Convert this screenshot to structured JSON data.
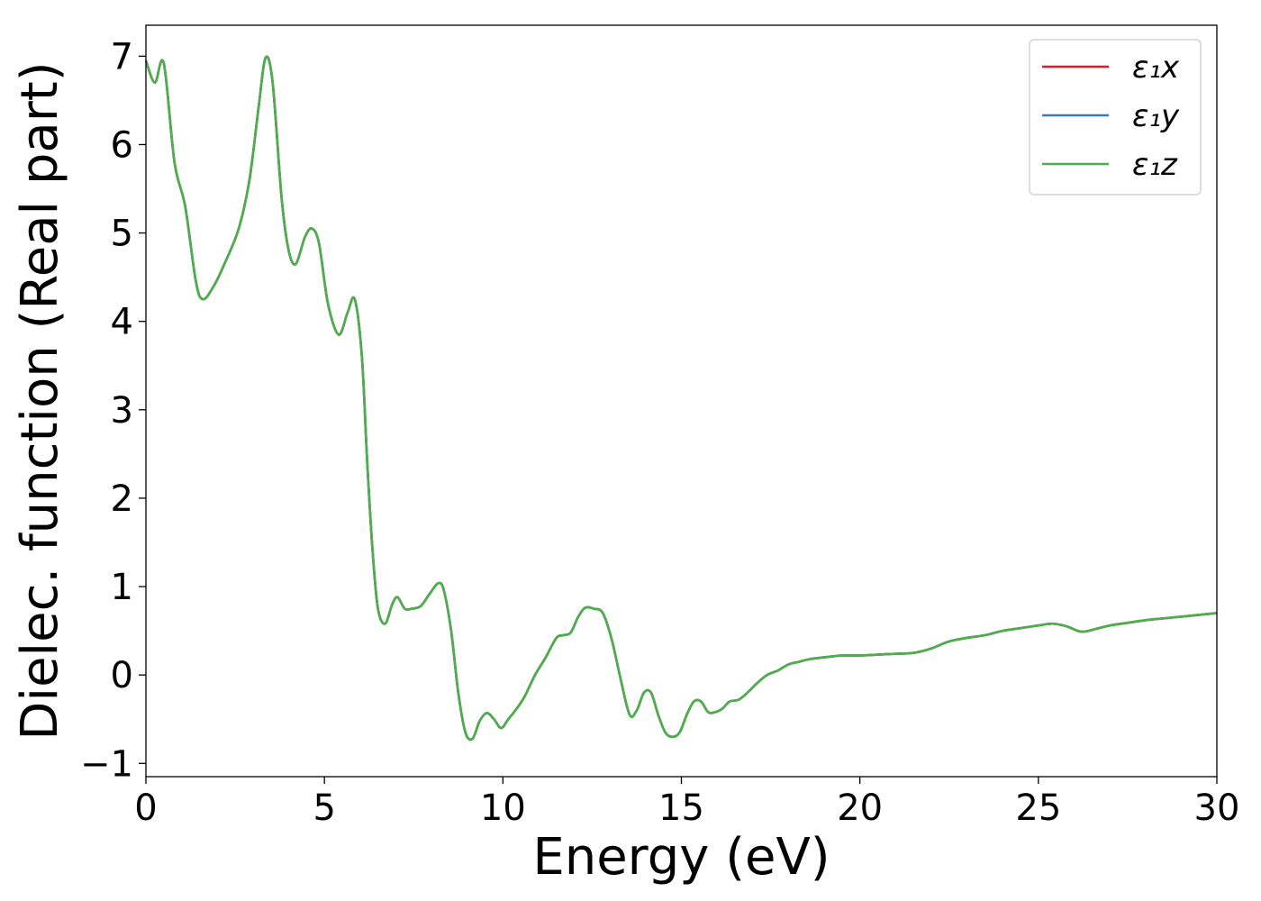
{
  "chart_data": {
    "type": "line",
    "xlabel": "Energy (eV)",
    "ylabel": "Dielec. function (Real part)",
    "xlim": [
      0,
      30
    ],
    "ylim": [
      -1.15,
      7.35
    ],
    "xticks": [
      0,
      5,
      10,
      15,
      20,
      25,
      30
    ],
    "xtick_labels": [
      "0",
      "5",
      "10",
      "15",
      "20",
      "25",
      "30"
    ],
    "yticks": [
      -1,
      0,
      1,
      2,
      3,
      4,
      5,
      6,
      7
    ],
    "ytick_labels": [
      "−1",
      "0",
      "1",
      "2",
      "3",
      "4",
      "5",
      "6",
      "7"
    ],
    "grid": false,
    "legend_position": "top-right",
    "series": [
      {
        "name": "ε₁x",
        "color": "#e41a1c",
        "x": [
          0,
          0.25,
          0.5,
          0.8,
          1.1,
          1.4,
          1.6,
          1.9,
          2.2,
          2.6,
          2.9,
          3.15,
          3.35,
          3.55,
          3.8,
          4.0,
          4.2,
          4.45,
          4.65,
          4.85,
          5.1,
          5.4,
          5.65,
          5.85,
          6.05,
          6.2,
          6.35,
          6.5,
          6.7,
          6.9,
          7.05,
          7.25,
          7.45,
          7.7,
          7.95,
          8.2,
          8.35,
          8.55,
          8.75,
          8.95,
          9.15,
          9.35,
          9.55,
          9.75,
          9.95,
          10.15,
          10.35,
          10.6,
          10.9,
          11.2,
          11.5,
          11.7,
          11.9,
          12.1,
          12.3,
          12.55,
          12.8,
          13.05,
          13.3,
          13.55,
          13.75,
          13.95,
          14.15,
          14.35,
          14.55,
          14.75,
          14.95,
          15.15,
          15.35,
          15.55,
          15.75,
          15.95,
          16.15,
          16.35,
          16.6,
          16.85,
          17.1,
          17.4,
          17.7,
          18.0,
          18.3,
          18.6,
          19.0,
          19.5,
          20.0,
          20.5,
          21.0,
          21.5,
          22.0,
          22.5,
          23.0,
          23.5,
          24.0,
          24.5,
          25.0,
          25.4,
          25.8,
          26.2,
          26.6,
          27.0,
          27.5,
          28.0,
          28.5,
          29.0,
          29.5,
          30.0
        ],
        "y": [
          6.95,
          6.7,
          6.92,
          5.8,
          5.3,
          4.45,
          4.25,
          4.4,
          4.65,
          5.05,
          5.6,
          6.4,
          6.98,
          6.7,
          5.4,
          4.8,
          4.65,
          4.95,
          5.05,
          4.88,
          4.2,
          3.85,
          4.1,
          4.25,
          3.6,
          2.4,
          1.4,
          0.75,
          0.58,
          0.8,
          0.88,
          0.75,
          0.75,
          0.78,
          0.92,
          1.04,
          0.95,
          0.5,
          -0.2,
          -0.65,
          -0.72,
          -0.52,
          -0.43,
          -0.5,
          -0.6,
          -0.5,
          -0.4,
          -0.25,
          0.0,
          0.2,
          0.42,
          0.45,
          0.48,
          0.65,
          0.76,
          0.75,
          0.7,
          0.4,
          -0.05,
          -0.45,
          -0.4,
          -0.2,
          -0.2,
          -0.45,
          -0.65,
          -0.7,
          -0.65,
          -0.45,
          -0.3,
          -0.3,
          -0.42,
          -0.42,
          -0.38,
          -0.3,
          -0.28,
          -0.2,
          -0.1,
          0.0,
          0.05,
          0.12,
          0.15,
          0.18,
          0.2,
          0.22,
          0.22,
          0.23,
          0.24,
          0.25,
          0.3,
          0.38,
          0.42,
          0.45,
          0.5,
          0.53,
          0.56,
          0.58,
          0.55,
          0.49,
          0.52,
          0.56,
          0.59,
          0.62,
          0.64,
          0.66,
          0.68,
          0.7
        ]
      },
      {
        "name": "ε₁y",
        "color": "#377eb8",
        "x": [
          0,
          0.25,
          0.5,
          0.8,
          1.1,
          1.4,
          1.6,
          1.9,
          2.2,
          2.6,
          2.9,
          3.15,
          3.35,
          3.55,
          3.8,
          4.0,
          4.2,
          4.45,
          4.65,
          4.85,
          5.1,
          5.4,
          5.65,
          5.85,
          6.05,
          6.2,
          6.35,
          6.5,
          6.7,
          6.9,
          7.05,
          7.25,
          7.45,
          7.7,
          7.95,
          8.2,
          8.35,
          8.55,
          8.75,
          8.95,
          9.15,
          9.35,
          9.55,
          9.75,
          9.95,
          10.15,
          10.35,
          10.6,
          10.9,
          11.2,
          11.5,
          11.7,
          11.9,
          12.1,
          12.3,
          12.55,
          12.8,
          13.05,
          13.3,
          13.55,
          13.75,
          13.95,
          14.15,
          14.35,
          14.55,
          14.75,
          14.95,
          15.15,
          15.35,
          15.55,
          15.75,
          15.95,
          16.15,
          16.35,
          16.6,
          16.85,
          17.1,
          17.4,
          17.7,
          18.0,
          18.3,
          18.6,
          19.0,
          19.5,
          20.0,
          20.5,
          21.0,
          21.5,
          22.0,
          22.5,
          23.0,
          23.5,
          24.0,
          24.5,
          25.0,
          25.4,
          25.8,
          26.2,
          26.6,
          27.0,
          27.5,
          28.0,
          28.5,
          29.0,
          29.5,
          30.0
        ],
        "y": [
          6.95,
          6.7,
          6.92,
          5.8,
          5.3,
          4.45,
          4.25,
          4.4,
          4.65,
          5.05,
          5.6,
          6.4,
          6.98,
          6.7,
          5.4,
          4.8,
          4.65,
          4.95,
          5.05,
          4.88,
          4.2,
          3.85,
          4.1,
          4.25,
          3.6,
          2.4,
          1.4,
          0.75,
          0.58,
          0.8,
          0.88,
          0.75,
          0.75,
          0.78,
          0.92,
          1.04,
          0.95,
          0.5,
          -0.2,
          -0.65,
          -0.72,
          -0.52,
          -0.43,
          -0.5,
          -0.6,
          -0.5,
          -0.4,
          -0.25,
          0.0,
          0.2,
          0.42,
          0.45,
          0.48,
          0.65,
          0.76,
          0.75,
          0.7,
          0.4,
          -0.05,
          -0.45,
          -0.4,
          -0.2,
          -0.2,
          -0.45,
          -0.65,
          -0.7,
          -0.65,
          -0.45,
          -0.3,
          -0.3,
          -0.42,
          -0.42,
          -0.38,
          -0.3,
          -0.28,
          -0.2,
          -0.1,
          0.0,
          0.05,
          0.12,
          0.15,
          0.18,
          0.2,
          0.22,
          0.22,
          0.23,
          0.24,
          0.25,
          0.3,
          0.38,
          0.42,
          0.45,
          0.5,
          0.53,
          0.56,
          0.58,
          0.55,
          0.49,
          0.52,
          0.56,
          0.59,
          0.62,
          0.64,
          0.66,
          0.68,
          0.7
        ]
      },
      {
        "name": "ε₁z",
        "color": "#4daf4a",
        "x": [
          0,
          0.25,
          0.5,
          0.8,
          1.1,
          1.4,
          1.6,
          1.9,
          2.2,
          2.6,
          2.9,
          3.15,
          3.35,
          3.55,
          3.8,
          4.0,
          4.2,
          4.45,
          4.65,
          4.85,
          5.1,
          5.4,
          5.65,
          5.85,
          6.05,
          6.2,
          6.35,
          6.5,
          6.7,
          6.9,
          7.05,
          7.25,
          7.45,
          7.7,
          7.95,
          8.2,
          8.35,
          8.55,
          8.75,
          8.95,
          9.15,
          9.35,
          9.55,
          9.75,
          9.95,
          10.15,
          10.35,
          10.6,
          10.9,
          11.2,
          11.5,
          11.7,
          11.9,
          12.1,
          12.3,
          12.55,
          12.8,
          13.05,
          13.3,
          13.55,
          13.75,
          13.95,
          14.15,
          14.35,
          14.55,
          14.75,
          14.95,
          15.15,
          15.35,
          15.55,
          15.75,
          15.95,
          16.15,
          16.35,
          16.6,
          16.85,
          17.1,
          17.4,
          17.7,
          18.0,
          18.3,
          18.6,
          19.0,
          19.5,
          20.0,
          20.5,
          21.0,
          21.5,
          22.0,
          22.5,
          23.0,
          23.5,
          24.0,
          24.5,
          25.0,
          25.4,
          25.8,
          26.2,
          26.6,
          27.0,
          27.5,
          28.0,
          28.5,
          29.0,
          29.5,
          30.0
        ],
        "y": [
          6.95,
          6.7,
          6.92,
          5.8,
          5.3,
          4.45,
          4.25,
          4.4,
          4.65,
          5.05,
          5.6,
          6.4,
          6.98,
          6.7,
          5.4,
          4.8,
          4.65,
          4.95,
          5.05,
          4.88,
          4.2,
          3.85,
          4.1,
          4.25,
          3.6,
          2.4,
          1.4,
          0.75,
          0.58,
          0.8,
          0.88,
          0.75,
          0.75,
          0.78,
          0.92,
          1.04,
          0.95,
          0.5,
          -0.2,
          -0.65,
          -0.72,
          -0.52,
          -0.43,
          -0.5,
          -0.6,
          -0.5,
          -0.4,
          -0.25,
          0.0,
          0.2,
          0.42,
          0.45,
          0.48,
          0.65,
          0.76,
          0.75,
          0.7,
          0.4,
          -0.05,
          -0.45,
          -0.4,
          -0.2,
          -0.2,
          -0.45,
          -0.65,
          -0.7,
          -0.65,
          -0.45,
          -0.3,
          -0.3,
          -0.42,
          -0.42,
          -0.38,
          -0.3,
          -0.28,
          -0.2,
          -0.1,
          0.0,
          0.05,
          0.12,
          0.15,
          0.18,
          0.2,
          0.22,
          0.22,
          0.23,
          0.24,
          0.25,
          0.3,
          0.38,
          0.42,
          0.45,
          0.5,
          0.53,
          0.56,
          0.58,
          0.55,
          0.49,
          0.52,
          0.56,
          0.59,
          0.62,
          0.64,
          0.66,
          0.68,
          0.7
        ]
      }
    ]
  }
}
